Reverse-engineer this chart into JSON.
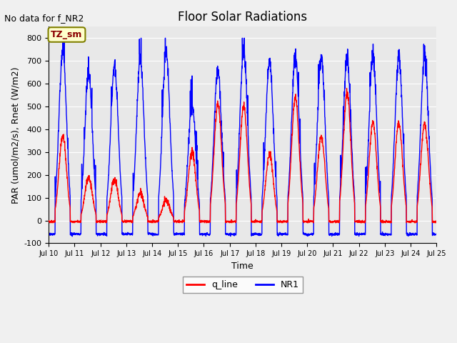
{
  "title": "Floor Solar Radiations",
  "xlabel": "Time",
  "ylabel": "PAR (umol/m2/s), Rnet (W/m2)",
  "ylim": [
    -100,
    850
  ],
  "xlim": [
    0,
    360
  ],
  "annotation_text": "No data for f_NR2",
  "box_label": "TZ_sm",
  "legend": [
    "q_line",
    "NR1"
  ],
  "legend_colors": [
    "red",
    "blue"
  ],
  "xtick_labels": [
    "Jul 10",
    "Jul 11",
    "Jul 12",
    "Jul 13",
    "Jul 14",
    "Jul 15",
    "Jul 16",
    "Jul 17",
    "Jul 18",
    "Jul 19",
    "Jul 20",
    "Jul 21",
    "Jul 22",
    "Jul 23",
    "Jul 24",
    "Jul 25"
  ],
  "xtick_positions": [
    0,
    24,
    48,
    72,
    96,
    120,
    144,
    168,
    192,
    216,
    240,
    264,
    288,
    312,
    336,
    360
  ],
  "ytick_labels": [
    "-100",
    "0",
    "100",
    "200",
    "300",
    "400",
    "500",
    "600",
    "700",
    "800"
  ],
  "ytick_positions": [
    -100,
    0,
    100,
    200,
    300,
    400,
    500,
    600,
    700,
    800
  ],
  "background_color": "#e8e8e8",
  "figure_color": "#f0f0f0",
  "hours_per_day": 24,
  "num_days": 15,
  "day_peaks_NR1": [
    750,
    650,
    680,
    700,
    740,
    510,
    660,
    750,
    700,
    720,
    720,
    710,
    720,
    720,
    720
  ],
  "day_peaks_q": [
    370,
    190,
    180,
    120,
    90,
    300,
    510,
    500,
    290,
    540,
    370,
    560,
    430,
    430,
    430
  ],
  "night_val_NR1": -60,
  "night_val_q": -5
}
